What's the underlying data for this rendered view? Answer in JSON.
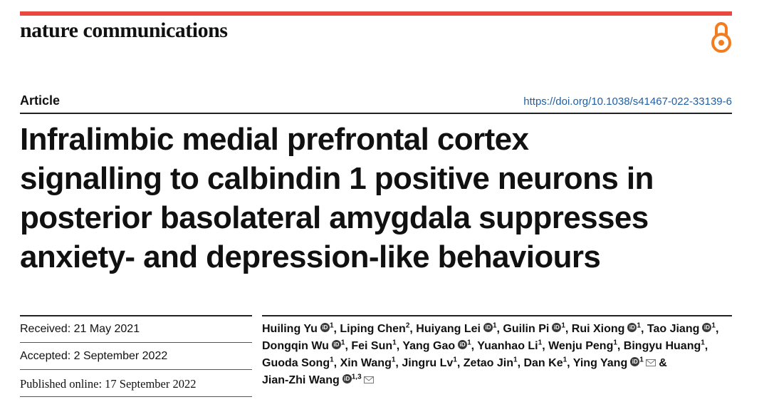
{
  "journal": {
    "name": "nature communications",
    "accent_color": "#e8483d",
    "oa_icon": "open-access-icon",
    "oa_color": "#f47c20"
  },
  "article": {
    "type": "Article",
    "doi": "https://doi.org/10.1038/s41467-022-33139-6",
    "title_lines": [
      "Infralimbic medial prefrontal cortex",
      "signalling to calbindin 1 positive neurons in",
      "posterior basolateral amygdala suppresses",
      "anxiety- and depression-like behaviours"
    ]
  },
  "dates": {
    "received": "Received: 21 May 2021",
    "accepted": "Accepted: 2 September 2022",
    "published": "Published online: 17 September 2022"
  },
  "authors": [
    {
      "name": "Huiling Yu",
      "sup": "1",
      "orcid": true,
      "mail": false
    },
    {
      "name": "Liping Chen",
      "sup": "2",
      "orcid": false,
      "mail": false
    },
    {
      "name": "Huiyang Lei",
      "sup": "1",
      "orcid": true,
      "mail": false
    },
    {
      "name": "Guilin Pi",
      "sup": "1",
      "orcid": true,
      "mail": false
    },
    {
      "name": "Rui Xiong",
      "sup": "1",
      "orcid": true,
      "mail": false
    },
    {
      "name": "Tao Jiang",
      "sup": "1",
      "orcid": true,
      "mail": false
    },
    {
      "name": "Dongqin Wu",
      "sup": "1",
      "orcid": true,
      "mail": false
    },
    {
      "name": "Fei Sun",
      "sup": "1",
      "orcid": false,
      "mail": false
    },
    {
      "name": "Yang Gao",
      "sup": "1",
      "orcid": true,
      "mail": false
    },
    {
      "name": "Yuanhao Li",
      "sup": "1",
      "orcid": false,
      "mail": false
    },
    {
      "name": "Wenju Peng",
      "sup": "1",
      "orcid": false,
      "mail": false
    },
    {
      "name": "Bingyu Huang",
      "sup": "1",
      "orcid": false,
      "mail": false
    },
    {
      "name": "Guoda Song",
      "sup": "1",
      "orcid": false,
      "mail": false
    },
    {
      "name": "Xin Wang",
      "sup": "1",
      "orcid": false,
      "mail": false
    },
    {
      "name": "Jingru Lv",
      "sup": "1",
      "orcid": false,
      "mail": false
    },
    {
      "name": "Zetao Jin",
      "sup": "1",
      "orcid": false,
      "mail": false
    },
    {
      "name": "Dan Ke",
      "sup": "1",
      "orcid": false,
      "mail": false
    },
    {
      "name": "Ying Yang",
      "sup": "1",
      "orcid": true,
      "mail": true
    },
    {
      "name": "Jian-Zhi Wang",
      "sup": "1,3",
      "orcid": true,
      "mail": true
    }
  ],
  "author_separator": ", ",
  "last_author_separator": " & ",
  "orcid_label": "iD"
}
